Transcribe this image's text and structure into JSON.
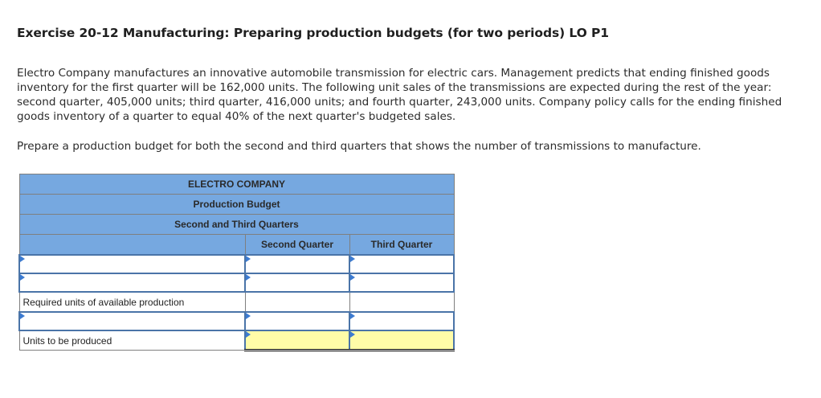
{
  "exercise": {
    "title": "Exercise 20-12 Manufacturing: Preparing production budgets (for two periods) LO P1",
    "problem_text": "Electro Company manufactures an innovative automobile transmission for electric cars. Management predicts that ending finished goods inventory for the first quarter will be 162,000 units. The following unit sales of the transmissions are expected during the rest of the year: second quarter, 405,000 units; third quarter, 416,000 units; and fourth quarter, 243,000 units. Company policy calls for the ending finished goods inventory of a quarter to equal 40% of the next quarter's budgeted sales.",
    "instruction": "Prepare a production budget for both the second and third quarters that shows the number of transmissions to manufacture."
  },
  "budget_table": {
    "company": "ELECTRO COMPANY",
    "budget_name": "Production Budget",
    "period": "Second and Third Quarters",
    "columns": [
      "",
      "Second Quarter",
      "Third Quarter"
    ],
    "rows": [
      {
        "label": "",
        "label_type": "dropdown",
        "second_quarter": "",
        "third_quarter": "",
        "highlight": false
      },
      {
        "label": "",
        "label_type": "dropdown",
        "second_quarter": "",
        "third_quarter": "",
        "highlight": false
      },
      {
        "label": "Required units of available production",
        "label_type": "static",
        "second_quarter": "",
        "third_quarter": "",
        "highlight": false
      },
      {
        "label": "",
        "label_type": "dropdown",
        "second_quarter": "",
        "third_quarter": "",
        "highlight": false
      },
      {
        "label": "Units to be produced",
        "label_type": "static",
        "second_quarter": "",
        "third_quarter": "",
        "highlight": true
      }
    ]
  },
  "colors": {
    "header_bg": "#76a8e0",
    "input_border": "#4a74a8",
    "highlight_bg": "#fffca8",
    "dropdown_marker": "#3c7bd1"
  }
}
